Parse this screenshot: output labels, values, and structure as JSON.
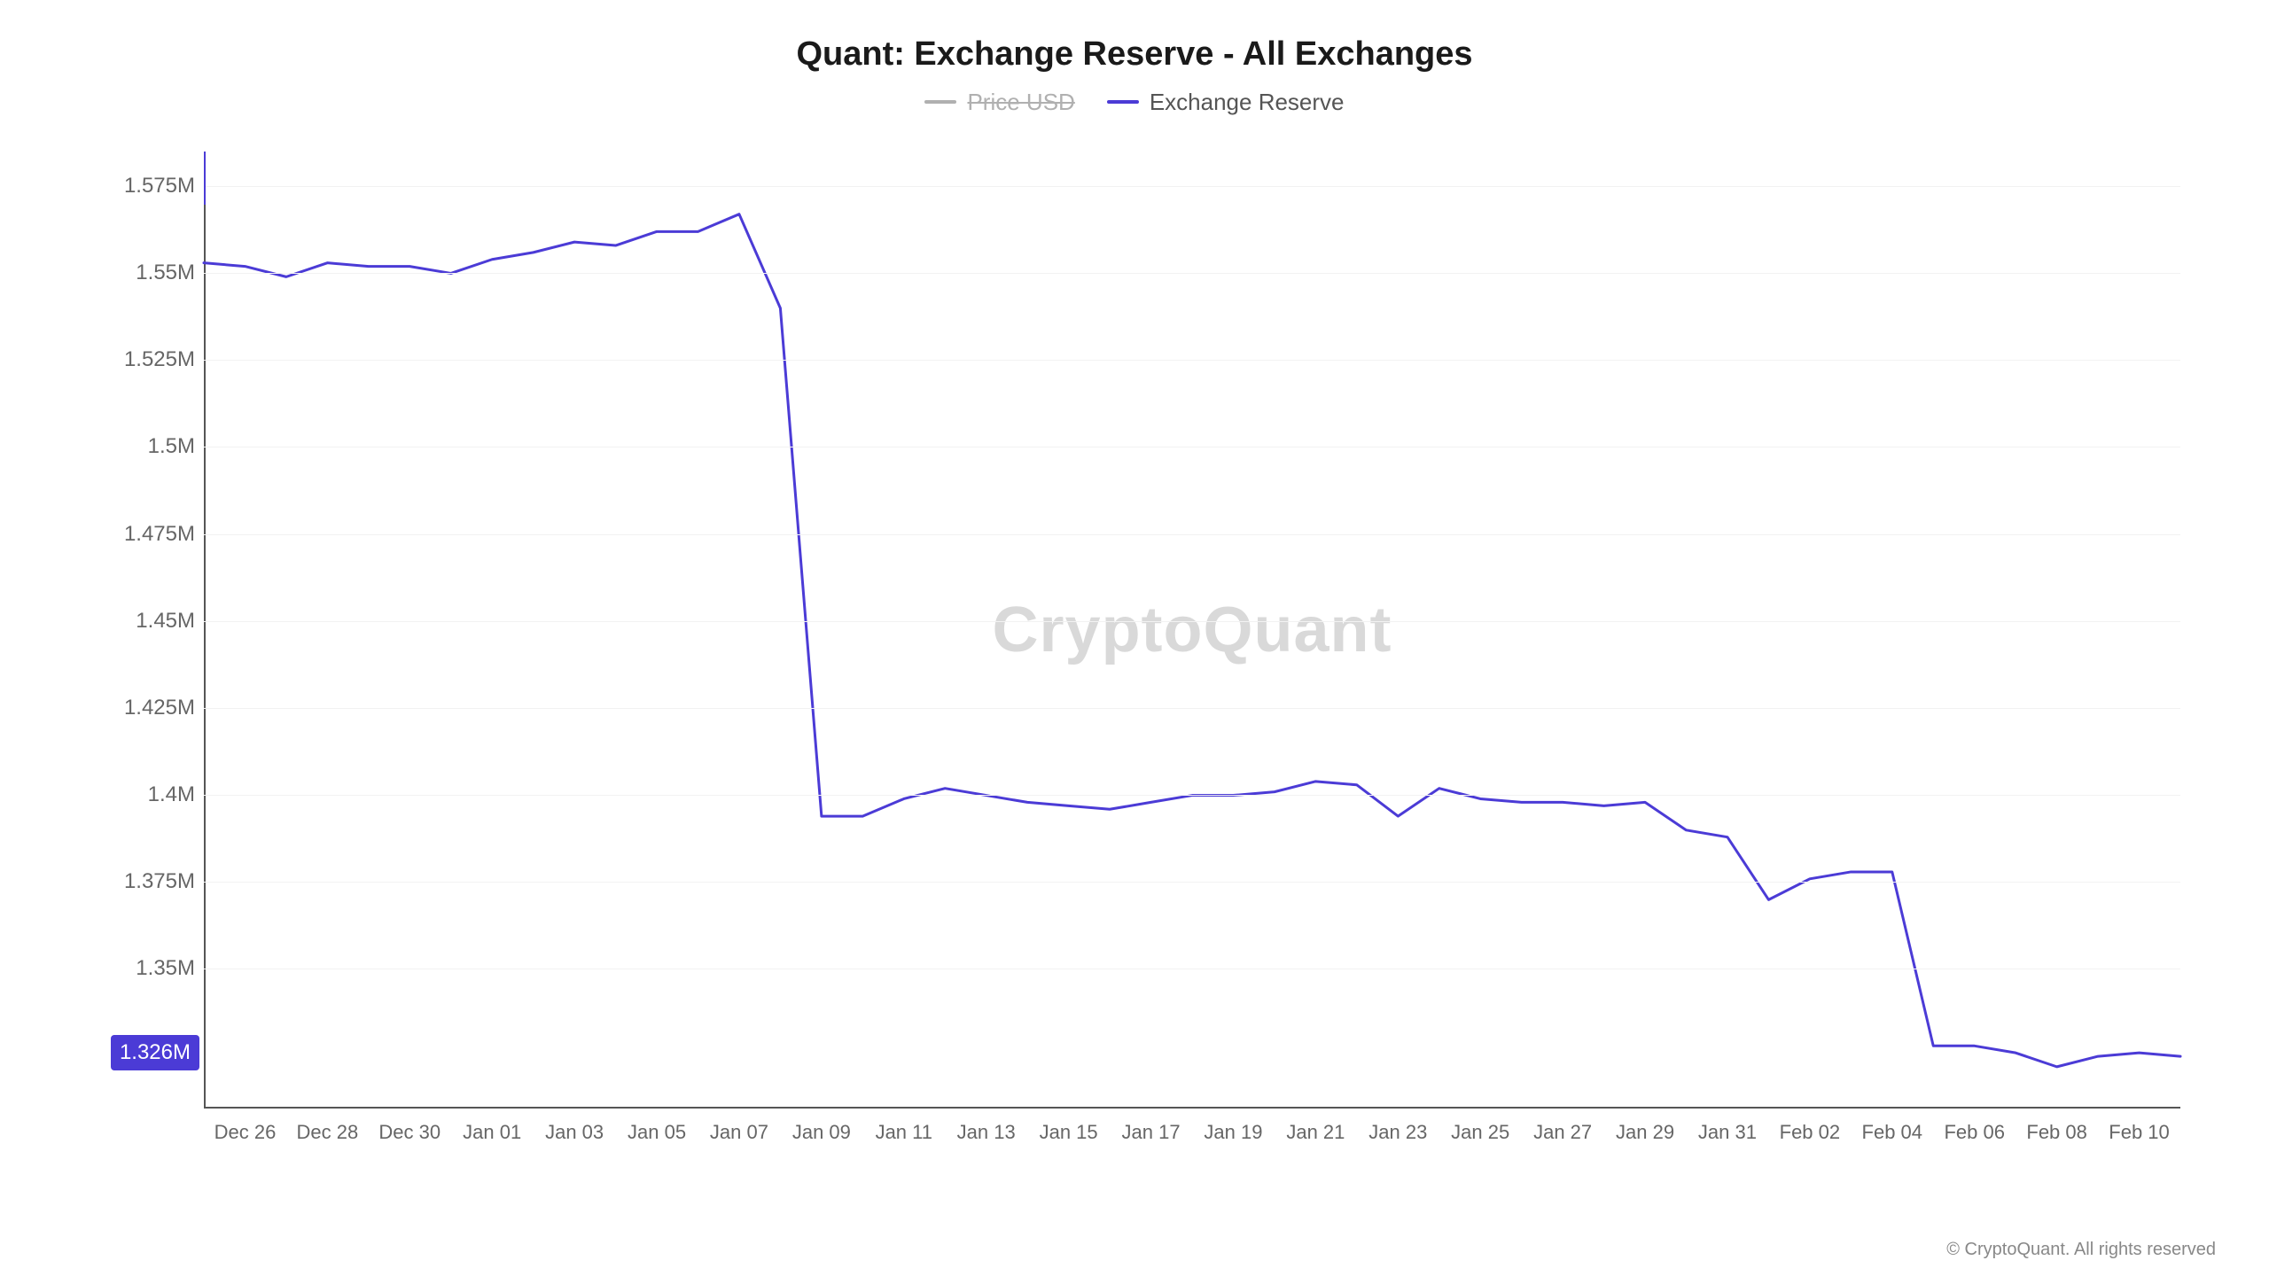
{
  "chart": {
    "type": "line",
    "title": "Quant: Exchange Reserve - All Exchanges",
    "title_fontsize": 38,
    "legend": {
      "items": [
        {
          "label": "Price USD",
          "color": "#b0b0b0",
          "disabled": true
        },
        {
          "label": "Exchange Reserve",
          "color": "#4b3bd6",
          "disabled": false
        }
      ],
      "fontsize": 26
    },
    "watermark": "CryptoQuant",
    "copyright": "© CryptoQuant. All rights reserved",
    "y_axis": {
      "min": 1.31,
      "max": 1.585,
      "ticks": [
        {
          "value": 1.575,
          "label": "1.575M"
        },
        {
          "value": 1.55,
          "label": "1.55M"
        },
        {
          "value": 1.525,
          "label": "1.525M"
        },
        {
          "value": 1.5,
          "label": "1.5M"
        },
        {
          "value": 1.475,
          "label": "1.475M"
        },
        {
          "value": 1.45,
          "label": "1.45M"
        },
        {
          "value": 1.425,
          "label": "1.425M"
        },
        {
          "value": 1.4,
          "label": "1.4M"
        },
        {
          "value": 1.375,
          "label": "1.375M"
        },
        {
          "value": 1.35,
          "label": "1.35M"
        }
      ],
      "current_value": 1.326,
      "current_label": "1.326M",
      "grid_color": "#f2f2f2",
      "label_color": "#666666",
      "label_fontsize": 24
    },
    "x_axis": {
      "ticks": [
        {
          "index": 1,
          "label": "Dec 26"
        },
        {
          "index": 3,
          "label": "Dec 28"
        },
        {
          "index": 5,
          "label": "Dec 30"
        },
        {
          "index": 7,
          "label": "Jan 01"
        },
        {
          "index": 9,
          "label": "Jan 03"
        },
        {
          "index": 11,
          "label": "Jan 05"
        },
        {
          "index": 13,
          "label": "Jan 07"
        },
        {
          "index": 15,
          "label": "Jan 09"
        },
        {
          "index": 17,
          "label": "Jan 11"
        },
        {
          "index": 19,
          "label": "Jan 13"
        },
        {
          "index": 21,
          "label": "Jan 15"
        },
        {
          "index": 23,
          "label": "Jan 17"
        },
        {
          "index": 25,
          "label": "Jan 19"
        },
        {
          "index": 27,
          "label": "Jan 21"
        },
        {
          "index": 29,
          "label": "Jan 23"
        },
        {
          "index": 31,
          "label": "Jan 25"
        },
        {
          "index": 33,
          "label": "Jan 27"
        },
        {
          "index": 35,
          "label": "Jan 29"
        },
        {
          "index": 37,
          "label": "Jan 31"
        },
        {
          "index": 39,
          "label": "Feb 02"
        },
        {
          "index": 41,
          "label": "Feb 04"
        },
        {
          "index": 43,
          "label": "Feb 06"
        },
        {
          "index": 45,
          "label": "Feb 08"
        },
        {
          "index": 47,
          "label": "Feb 10"
        }
      ],
      "label_color": "#666666",
      "label_fontsize": 22
    },
    "series": {
      "name": "Exchange Reserve",
      "color": "#4b3bd6",
      "line_width": 3,
      "x_count": 49,
      "values": [
        1.553,
        1.552,
        1.549,
        1.553,
        1.552,
        1.552,
        1.55,
        1.554,
        1.556,
        1.559,
        1.558,
        1.562,
        1.562,
        1.567,
        1.54,
        1.394,
        1.394,
        1.399,
        1.402,
        1.4,
        1.398,
        1.397,
        1.396,
        1.398,
        1.4,
        1.4,
        1.401,
        1.404,
        1.403,
        1.394,
        1.402,
        1.399,
        1.398,
        1.398,
        1.397,
        1.398,
        1.39,
        1.388,
        1.37,
        1.376,
        1.378,
        1.378,
        1.328,
        1.328,
        1.326,
        1.322,
        1.325,
        1.326,
        1.325
      ]
    },
    "background_color": "#ffffff",
    "axis_line_color": "#555555"
  }
}
